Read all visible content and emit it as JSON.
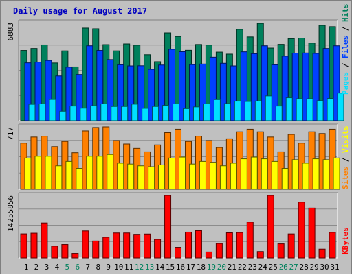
{
  "colors": {
    "background": "#c0c0c0",
    "title": "#0000c0",
    "weekday_label": "#000000",
    "weekend_label": "#00805c",
    "hits": "#00805c",
    "files": "#0040ff",
    "pages": "#00e0ff",
    "visits": "#ffff00",
    "sites": "#ff8000",
    "kbytes": "#ff0000",
    "legend_separator": "#000000"
  },
  "chart_data": {
    "type": "bar",
    "title": "Daily usage for August 2017",
    "categories": [
      "1",
      "2",
      "3",
      "4",
      "5",
      "6",
      "7",
      "8",
      "9",
      "10",
      "11",
      "12",
      "13",
      "14",
      "15",
      "16",
      "17",
      "18",
      "19",
      "20",
      "21",
      "22",
      "23",
      "24",
      "25",
      "26",
      "27",
      "28",
      "29",
      "30",
      "31"
    ],
    "weekend_days": [
      "5",
      "6",
      "12",
      "13",
      "19",
      "20",
      "26",
      "27"
    ],
    "panels": [
      {
        "name": "hits-files-pages",
        "max_label": "6883",
        "ymax": 6883,
        "legend": [
          {
            "label": "Pages",
            "color": "#00e0ff"
          },
          {
            "label": "Files",
            "color": "#0040ff"
          },
          {
            "label": "Hits",
            "color": "#00805c"
          }
        ],
        "series": [
          {
            "name": "Hits",
            "color": "#00805c",
            "values": [
              4930,
              5070,
              5320,
              4050,
              4900,
              3780,
              6500,
              6450,
              5340,
              4900,
              5390,
              5300,
              4630,
              4140,
              6160,
              5910,
              4940,
              5350,
              5310,
              4810,
              4670,
              6410,
              5880,
              6830,
              5100,
              5360,
              5760,
              5800,
              5450,
              6690,
              6600
            ]
          },
          {
            "name": "Files",
            "color": "#0040ff",
            "values": [
              4060,
              4110,
              4230,
              3140,
              3760,
              3240,
              5260,
              4930,
              4290,
              3930,
              3850,
              3860,
              3610,
              3910,
              5010,
              4840,
              3940,
              3980,
              4460,
              4030,
              3850,
              4830,
              4700,
              5260,
              3930,
              4530,
              4740,
              4750,
              4720,
              5070,
              5260
            ]
          },
          {
            "name": "Pages",
            "color": "#00e0ff",
            "values": [
              1150,
              1180,
              1490,
              660,
              1030,
              880,
              1050,
              1180,
              1000,
              1000,
              1160,
              870,
              1000,
              1080,
              1180,
              850,
              970,
              1180,
              1480,
              1200,
              1370,
              1350,
              1380,
              1740,
              1030,
              1610,
              1540,
              1540,
              1400,
              1560,
              1940
            ]
          }
        ]
      },
      {
        "name": "visits-sites",
        "max_label": "717",
        "ymax": 717,
        "legend": [
          {
            "label": "Sites",
            "color": "#ff8000"
          },
          {
            "label": "Visits",
            "color": "#ffff00"
          }
        ],
        "series": [
          {
            "name": "Sites",
            "color": "#ff8000",
            "values": [
              530,
              600,
              610,
              490,
              550,
              420,
              670,
              710,
              720,
              560,
              520,
              470,
              430,
              510,
              650,
              690,
              550,
              610,
              560,
              480,
              580,
              660,
              690,
              660,
              600,
              430,
              630,
              530,
              660,
              640,
              690
            ]
          },
          {
            "name": "Visits",
            "color": "#ffff00",
            "values": [
              360,
              380,
              380,
              270,
              320,
              240,
              380,
              380,
              400,
              300,
              290,
              270,
              260,
              280,
              360,
              370,
              290,
              320,
              310,
              270,
              300,
              350,
              370,
              350,
              320,
              240,
              340,
              300,
              350,
              340,
              360
            ]
          }
        ]
      },
      {
        "name": "kbytes",
        "max_label": "14255856",
        "ymax": 14255856,
        "legend": [
          {
            "label": "KBytes",
            "color": "#ff0000"
          }
        ],
        "series": [
          {
            "name": "KBytes",
            "color": "#ff0000",
            "values": [
              5470000,
              5630000,
              7960000,
              2680000,
              3050000,
              1010000,
              6140000,
              3860000,
              4710000,
              5680000,
              5680000,
              5380000,
              5440000,
              4230000,
              14255856,
              2420000,
              5880000,
              6190000,
              1350000,
              3270000,
              5720000,
              5780000,
              8170000,
              1450000,
              14255856,
              3200000,
              5460000,
              12730000,
              11380000,
              2000000,
              5820000
            ]
          }
        ]
      }
    ]
  }
}
